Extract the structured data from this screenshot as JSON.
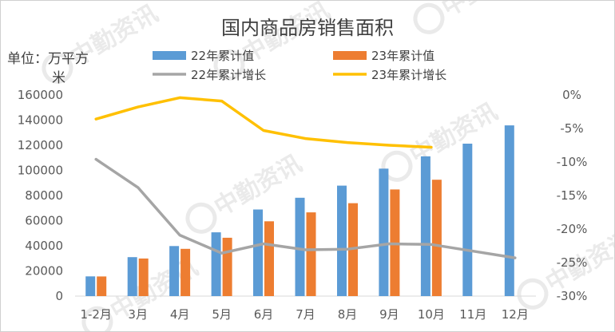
{
  "watermark": "中勤资讯",
  "chart_data": {
    "type": "bar",
    "title": "国内商品房销售面积",
    "ylabel": "单位：万平方米",
    "ylabel_lines": [
      "单位：万平方",
      "米"
    ],
    "categories": [
      "1-2月",
      "3月",
      "4月",
      "5月",
      "6月",
      "7月",
      "8月",
      "9月",
      "10月",
      "11月",
      "12月"
    ],
    "series": [
      {
        "name": "22年累计值",
        "kind": "bar",
        "axis": "left",
        "color": "#5b9bd5",
        "values": [
          15700,
          31000,
          39800,
          50700,
          68900,
          78200,
          87900,
          101400,
          111200,
          121300,
          135800
        ]
      },
      {
        "name": "23年累计值",
        "kind": "bar",
        "axis": "left",
        "color": "#ed7d31",
        "values": [
          15600,
          29900,
          37600,
          46400,
          59500,
          66600,
          73900,
          84800,
          92600,
          null,
          null
        ]
      },
      {
        "name": "22年累计增长",
        "kind": "line",
        "axis": "right",
        "color": "#a5a5a5",
        "values": [
          -9.6,
          -13.8,
          -20.9,
          -23.6,
          -22.2,
          -23.1,
          -23.0,
          -22.2,
          -22.3,
          -23.3,
          -24.3
        ]
      },
      {
        "name": "23年累计增长",
        "kind": "line",
        "axis": "right",
        "color": "#ffc000",
        "values": [
          -3.6,
          -1.8,
          -0.4,
          -0.9,
          -5.3,
          -6.5,
          -7.1,
          -7.5,
          -7.8,
          null,
          null
        ]
      }
    ],
    "left_axis": {
      "min": 0,
      "max": 160000,
      "step": 20000,
      "ticks": [
        "0",
        "20000",
        "40000",
        "60000",
        "80000",
        "100000",
        "120000",
        "140000",
        "160000"
      ]
    },
    "right_axis": {
      "min": -30,
      "max": 0,
      "step": 5,
      "ticks": [
        "0%",
        "-5%",
        "-10%",
        "-15%",
        "-20%",
        "-25%",
        "-30%"
      ]
    },
    "grid": false,
    "legend_position": "top"
  }
}
